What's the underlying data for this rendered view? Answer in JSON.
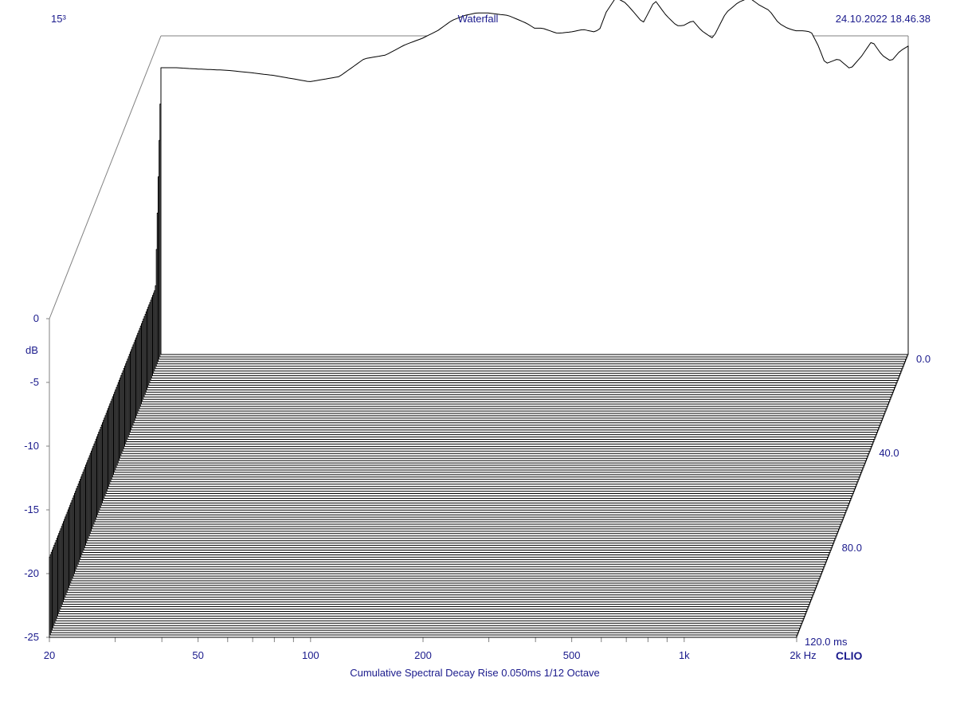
{
  "header": {
    "left": "15³",
    "title": "Waterfall",
    "timestamp": "24.10.2022 18.46.38"
  },
  "footer": {
    "caption": "Cumulative Spectral Decay   Rise 0.050ms   1/12 Octave",
    "brand": "CLIO"
  },
  "colors": {
    "label": "#1a1a8c",
    "trace": "#000000",
    "axes": "#808080"
  },
  "chart_data": {
    "type": "area",
    "title": "Waterfall",
    "xlabel": "Hz",
    "ylabel": "dB",
    "zlabel": "ms",
    "x_scale": "log",
    "xlim": [
      20,
      2000
    ],
    "ylim": [
      -25,
      0
    ],
    "zlim": [
      0,
      120
    ],
    "x_ticks": [
      {
        "value": 20,
        "label": "20"
      },
      {
        "value": 50,
        "label": "50"
      },
      {
        "value": 100,
        "label": "100"
      },
      {
        "value": 200,
        "label": "200"
      },
      {
        "value": 500,
        "label": "500"
      },
      {
        "value": 1000,
        "label": "1k"
      },
      {
        "value": 2000,
        "label": "2k Hz"
      }
    ],
    "y_ticks": [
      {
        "value": 0,
        "label": "0"
      },
      {
        "value": -5,
        "label": "-5"
      },
      {
        "value": -10,
        "label": "-10"
      },
      {
        "value": -15,
        "label": "-15"
      },
      {
        "value": -20,
        "label": "-20"
      },
      {
        "value": -25,
        "label": "-25"
      }
    ],
    "z_ticks": [
      {
        "value": 0,
        "label": "0.0"
      },
      {
        "value": 40,
        "label": "40.0"
      },
      {
        "value": 80,
        "label": "80.0"
      },
      {
        "value": 120,
        "label": "120.0  ms"
      }
    ],
    "first_slice": {
      "freq": [
        20,
        22,
        25,
        30,
        35,
        40,
        50,
        60,
        70,
        80,
        90,
        100,
        110,
        120,
        130,
        140,
        150,
        170,
        190,
        200,
        210,
        230,
        250,
        270,
        290,
        300,
        310,
        330,
        350,
        370,
        390,
        400,
        420,
        450,
        480,
        500,
        530,
        560,
        600,
        650,
        700,
        750,
        800,
        850,
        900,
        950,
        1000,
        1050,
        1100,
        1150,
        1200,
        1300,
        1400,
        1500,
        1600,
        1700,
        1800,
        1900,
        2000
      ],
      "db": [
        -2.5,
        -2.5,
        -2.6,
        -2.7,
        -2.9,
        -3.1,
        -3.6,
        -3.2,
        -1.8,
        -1.5,
        -0.7,
        -0.2,
        0.4,
        1.2,
        1.6,
        1.8,
        1.8,
        1.6,
        1.0,
        0.6,
        0.6,
        0.2,
        0.3,
        0.5,
        0.3,
        0.6,
        1.8,
        3.0,
        2.6,
        1.8,
        1.0,
        1.6,
        2.8,
        1.6,
        0.8,
        0.8,
        1.2,
        0.4,
        -0.2,
        1.8,
        2.6,
        3.0,
        2.4,
        2.0,
        1.0,
        0.6,
        0.4,
        0.4,
        0.3,
        -0.8,
        -2.2,
        -1.8,
        -2.6,
        -1.6,
        -0.4,
        -1.5,
        -2.0,
        -1.2,
        -0.8
      ]
    }
  }
}
